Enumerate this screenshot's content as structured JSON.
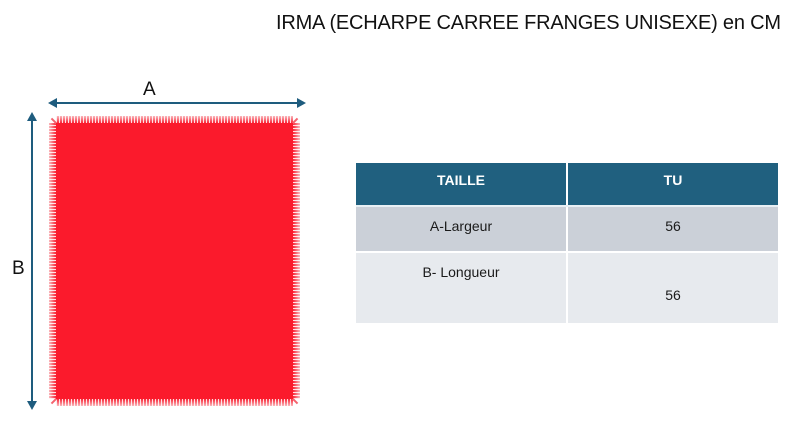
{
  "title": "IRMA (ECHARPE CARREE FRANGES UNISEXE) en CM",
  "diagram": {
    "width_arrow_label": "A",
    "height_arrow_label": "B",
    "scarf_color": "#fb1a2c",
    "fringe_color": "#f9b9bd",
    "arrow_color": "#1e5c7e"
  },
  "size_table": {
    "columns": [
      "TAILLE",
      "TU"
    ],
    "rows": [
      {
        "label": "A-Largeur",
        "value": "56"
      },
      {
        "label": "B- Longueur",
        "value": "56"
      }
    ],
    "header_bg": "#20607f",
    "header_text_color": "#ffffff",
    "row_colors": [
      "#cbd0d8",
      "#e7eaee"
    ]
  }
}
